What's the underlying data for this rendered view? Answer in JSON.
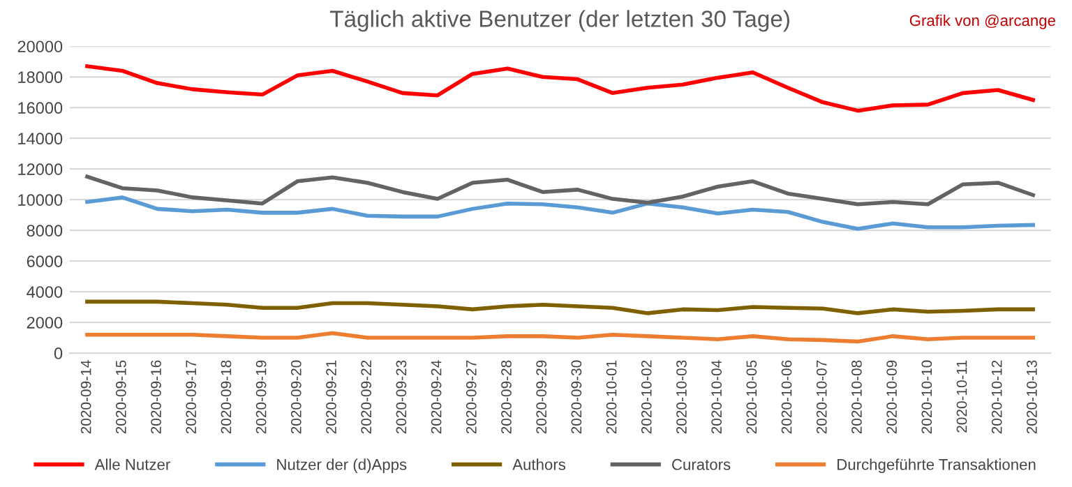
{
  "chart_data": {
    "type": "line",
    "title": "Täglich aktive Benutzer (der letzten 30 Tage)",
    "annotations": [
      "Grafik von @arcange"
    ],
    "categories": [
      "2020-09-14",
      "2020-09-15",
      "2020-09-16",
      "2020-09-17",
      "2020-09-18",
      "2020-09-19",
      "2020-09-20",
      "2020-09-21",
      "2020-09-22",
      "2020-09-23",
      "2020-09-24",
      "2020-09-27",
      "2020-09-28",
      "2020-09-29",
      "2020-09-30",
      "2020-10-01",
      "2020-10-02",
      "2020-10-03",
      "2020-10-04",
      "2020-10-05",
      "2020-10-06",
      "2020-10-07",
      "2020-10-08",
      "2020-10-09",
      "2020-10-10",
      "2020-10-11",
      "2020-10-12",
      "2020-10-13"
    ],
    "series": [
      {
        "name": "Alle Nutzer",
        "color": "#ff0000",
        "values": [
          18700,
          18400,
          17600,
          17200,
          17000,
          16850,
          18100,
          18400,
          17700,
          16950,
          16800,
          18200,
          18550,
          18000,
          17850,
          16950,
          17300,
          17500,
          17950,
          18300,
          17300,
          16350,
          15800,
          16150,
          16200,
          16950,
          17150,
          16500
        ]
      },
      {
        "name": "Nutzer der (d)Apps",
        "color": "#5b9bd5",
        "values": [
          9850,
          10150,
          9400,
          9250,
          9350,
          9150,
          9150,
          9400,
          8950,
          8900,
          8900,
          9400,
          9750,
          9700,
          9500,
          9150,
          9750,
          9500,
          9100,
          9350,
          9200,
          8550,
          8100,
          8450,
          8200,
          8200,
          8300,
          8350
        ]
      },
      {
        "name": "Authors",
        "color": "#7f6000",
        "values": [
          3350,
          3350,
          3350,
          3250,
          3150,
          2950,
          2950,
          3250,
          3250,
          3150,
          3050,
          2850,
          3050,
          3150,
          3050,
          2950,
          2600,
          2850,
          2800,
          3000,
          2950,
          2900,
          2600,
          2850,
          2700,
          2750,
          2850,
          2850
        ]
      },
      {
        "name": "Curators",
        "color": "#636363",
        "values": [
          11500,
          10750,
          10600,
          10150,
          9950,
          9750,
          11200,
          11450,
          11100,
          10500,
          10050,
          11100,
          11300,
          10500,
          10650,
          10050,
          9800,
          10200,
          10850,
          11200,
          10400,
          10050,
          9700,
          9850,
          9700,
          11000,
          11100,
          10300
        ]
      },
      {
        "name": "Durchgeführte Transaktionen",
        "color": "#ed7d31",
        "values": [
          1200,
          1200,
          1200,
          1200,
          1100,
          1000,
          1000,
          1300,
          1000,
          1000,
          1000,
          1000,
          1100,
          1100,
          1000,
          1200,
          1100,
          1000,
          900,
          1100,
          900,
          850,
          750,
          1100,
          900,
          1000,
          1000,
          1000
        ]
      }
    ],
    "ylim": [
      0,
      20000
    ],
    "yticks": [
      0,
      2000,
      4000,
      6000,
      8000,
      10000,
      12000,
      14000,
      16000,
      18000,
      20000
    ],
    "grid": "y",
    "legend": "bottom",
    "marker": "none",
    "line_style": "solid"
  }
}
